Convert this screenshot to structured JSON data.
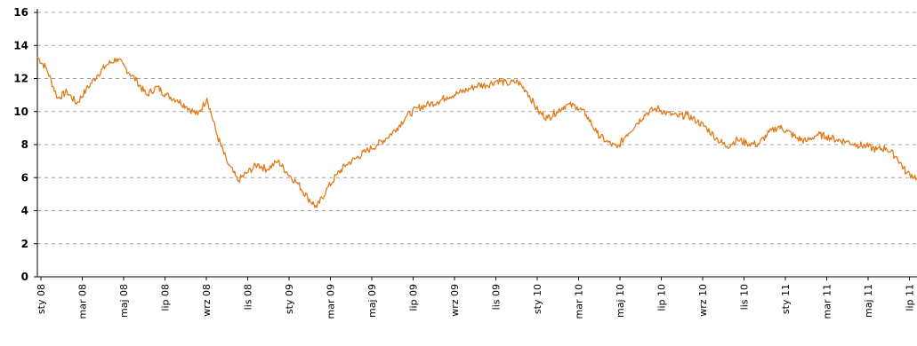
{
  "chart_data": {
    "type": "line",
    "title": "",
    "xlabel": "",
    "ylabel": "",
    "ylim": [
      0,
      16
    ],
    "yticks": [
      "0",
      "2",
      "4",
      "6",
      "8",
      "10",
      "12",
      "14",
      "16"
    ],
    "xticks": [
      "sty 08",
      "mar 08",
      "maj 08",
      "lip 08",
      "wrz 08",
      "lis 08",
      "sty 09",
      "mar 09",
      "maj 09",
      "lip 09",
      "wrz 09",
      "lis 09",
      "sty 10",
      "mar 10",
      "maj 10",
      "lip 10",
      "wrz 10",
      "lis 10",
      "sty 11",
      "mar 11",
      "maj 11",
      "lip 11"
    ],
    "grid": "horizontal dashed",
    "legend": "none",
    "series": [
      {
        "color": "#e07b17",
        "x": [
          "2008-01-01",
          "2008-01-15",
          "2008-02-01",
          "2008-02-15",
          "2008-03-01",
          "2008-03-15",
          "2008-04-01",
          "2008-04-15",
          "2008-05-01",
          "2008-05-15",
          "2008-06-01",
          "2008-06-15",
          "2008-07-01",
          "2008-07-15",
          "2008-08-01",
          "2008-08-15",
          "2008-09-01",
          "2008-09-15",
          "2008-10-01",
          "2008-10-15",
          "2008-11-01",
          "2008-11-15",
          "2008-12-01",
          "2008-12-15",
          "2009-01-01",
          "2009-01-15",
          "2009-02-01",
          "2009-02-15",
          "2009-03-01",
          "2009-03-15",
          "2009-04-01",
          "2009-04-15",
          "2009-05-01",
          "2009-05-15",
          "2009-06-01",
          "2009-06-15",
          "2009-07-01",
          "2009-07-15",
          "2009-08-01",
          "2009-08-15",
          "2009-09-01",
          "2009-09-15",
          "2009-10-01",
          "2009-10-15",
          "2009-11-01",
          "2009-11-15",
          "2009-12-01",
          "2009-12-15",
          "2010-01-01",
          "2010-01-15",
          "2010-02-01",
          "2010-02-15",
          "2010-03-01",
          "2010-03-15",
          "2010-04-01",
          "2010-04-15",
          "2010-05-01",
          "2010-05-15",
          "2010-06-01",
          "2010-06-15",
          "2010-07-01",
          "2010-07-15",
          "2010-08-01",
          "2010-08-15",
          "2010-09-01",
          "2010-09-15",
          "2010-10-01",
          "2010-10-15",
          "2010-11-01",
          "2010-11-15",
          "2010-12-01",
          "2010-12-15",
          "2011-01-01",
          "2011-01-15",
          "2011-02-01",
          "2011-02-15",
          "2011-03-01",
          "2011-03-15",
          "2011-04-01",
          "2011-04-15",
          "2011-05-01",
          "2011-05-15",
          "2011-06-01",
          "2011-06-15",
          "2011-07-01",
          "2011-07-15",
          "2011-08-01",
          "2011-08-15",
          "2011-08-31"
        ],
        "values": [
          13.3,
          12.6,
          10.8,
          11.2,
          10.5,
          11.3,
          12.2,
          12.8,
          13.2,
          12.6,
          11.8,
          11.0,
          11.5,
          11.0,
          10.7,
          10.3,
          9.8,
          10.8,
          8.5,
          7.0,
          5.8,
          6.3,
          6.8,
          6.5,
          7.0,
          6.3,
          5.6,
          4.8,
          4.2,
          5.2,
          6.2,
          6.8,
          7.2,
          7.6,
          8.0,
          8.4,
          9.0,
          9.7,
          10.2,
          10.4,
          10.6,
          10.9,
          11.1,
          11.3,
          11.6,
          11.6,
          11.9,
          11.7,
          11.8,
          11.2,
          10.0,
          9.6,
          10.0,
          10.4,
          10.3,
          9.8,
          8.7,
          8.2,
          7.8,
          8.6,
          9.3,
          9.9,
          10.2,
          9.9,
          9.7,
          9.8,
          9.4,
          9.0,
          8.3,
          7.9,
          8.3,
          8.1,
          8.0,
          8.6,
          9.1,
          8.8,
          8.4,
          8.2,
          8.6,
          8.5,
          8.3,
          8.2,
          8.0,
          7.9,
          7.7,
          7.8,
          7.2,
          6.3,
          6.0
        ]
      }
    ]
  }
}
